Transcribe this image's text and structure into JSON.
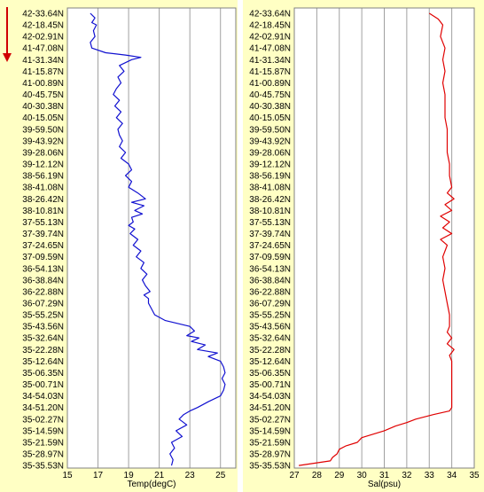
{
  "direction_arrow": {
    "color": "#d00000"
  },
  "chart_data": [
    {
      "type": "line",
      "xlabel": "Temp(degC)",
      "ylabel": "",
      "xlim": [
        15,
        26
      ],
      "x_ticks": [
        15,
        17,
        19,
        21,
        23,
        25
      ],
      "grid": true,
      "panel_bg": "#ffffc4",
      "plot_bg": "#ffffff",
      "y_ticks": [
        "42-33.64N",
        "42-18.45N",
        "42-02.91N",
        "41-47.08N",
        "41-31.34N",
        "41-15.87N",
        "41-00.89N",
        "40-45.75N",
        "40-30.38N",
        "40-15.05N",
        "39-59.50N",
        "39-43.92N",
        "39-28.06N",
        "39-12.12N",
        "38-56.19N",
        "38-41.08N",
        "38-26.42N",
        "38-10.81N",
        "37-55.13N",
        "37-39.74N",
        "37-24.65N",
        "37-09.59N",
        "36-54.13N",
        "36-38.84N",
        "36-22.88N",
        "36-07.29N",
        "35-55.25N",
        "35-43.56N",
        "35-32.64N",
        "35-22.28N",
        "35-12.64N",
        "35-06.35N",
        "35-00.71N",
        "34-54.03N",
        "34-51.20N",
        "35-02.27N",
        "35-14.59N",
        "35-21.59N",
        "35-28.97N",
        "35-35.53N"
      ],
      "series": [
        {
          "color": "#1010d0",
          "depth_index": [
            0,
            0.4,
            0.8,
            1,
            1.5,
            2,
            2.5,
            3,
            3.4,
            3.6,
            3.8,
            4,
            4.5,
            5,
            5.5,
            6,
            6.5,
            7,
            7.5,
            8,
            8.5,
            9,
            9.5,
            10,
            10.5,
            11,
            11.5,
            12,
            12.5,
            13,
            13.5,
            14,
            14.5,
            15,
            15.5,
            16,
            16.3,
            16.6,
            17,
            17.3,
            17.6,
            18,
            18.3,
            18.6,
            19,
            19.5,
            20,
            20.5,
            21,
            21.5,
            22,
            22.5,
            23,
            23.5,
            24,
            24.3,
            24.6,
            25,
            25.5,
            26,
            26.5,
            27,
            27.4,
            27.8,
            28,
            28.3,
            28.6,
            29,
            29.3,
            29.6,
            30,
            30.5,
            31,
            31.5,
            32,
            32.5,
            33,
            33.5,
            34,
            34.3,
            34.6,
            35,
            35.5,
            36,
            36.5,
            37,
            37.5,
            38,
            38.5,
            39
          ],
          "values": [
            16.5,
            16.8,
            16.6,
            16.9,
            16.7,
            16.8,
            16.5,
            16.6,
            17.5,
            18.8,
            19.8,
            19.2,
            18.4,
            18.7,
            18.3,
            18.5,
            18.2,
            18.0,
            18.4,
            18.1,
            18.5,
            18.2,
            18.6,
            18.3,
            18.4,
            18.6,
            18.4,
            18.8,
            18.5,
            19.0,
            19.2,
            18.8,
            19.2,
            19.0,
            19.6,
            20.1,
            19.2,
            20.0,
            19.4,
            19.9,
            19.2,
            19.3,
            19.0,
            19.4,
            19.1,
            19.6,
            19.3,
            19.8,
            19.5,
            20.0,
            19.8,
            20.2,
            19.9,
            20.1,
            20.4,
            20.0,
            20.3,
            20.3,
            20.5,
            20.7,
            21.4,
            23.0,
            23.3,
            22.8,
            23.6,
            23.1,
            24.0,
            23.5,
            24.8,
            24.2,
            25.0,
            25.2,
            25.3,
            25.1,
            25.3,
            25.2,
            25.0,
            24.2,
            23.5,
            23.0,
            22.6,
            22.3,
            22.8,
            22.1,
            22.5,
            21.8,
            22.0,
            21.7,
            21.9,
            21.8
          ]
        }
      ]
    },
    {
      "type": "line",
      "xlabel": "Sal(psu)",
      "ylabel": "",
      "xlim": [
        27,
        35
      ],
      "x_ticks": [
        27,
        28,
        29,
        30,
        31,
        32,
        33,
        34,
        35
      ],
      "grid": true,
      "panel_bg": "#ffffc4",
      "plot_bg": "#ffffff",
      "y_ticks": [
        "42-33.64N",
        "42-18.45N",
        "42-02.91N",
        "41-47.08N",
        "41-31.34N",
        "41-15.87N",
        "41-00.89N",
        "40-45.75N",
        "40-30.38N",
        "40-15.05N",
        "39-59.50N",
        "39-43.92N",
        "39-28.06N",
        "39-12.12N",
        "38-56.19N",
        "38-41.08N",
        "38-26.42N",
        "38-10.81N",
        "37-55.13N",
        "37-39.74N",
        "37-24.65N",
        "37-09.59N",
        "36-54.13N",
        "36-38.84N",
        "36-22.88N",
        "36-07.29N",
        "35-55.25N",
        "35-43.56N",
        "35-32.64N",
        "35-22.28N",
        "35-12.64N",
        "35-06.35N",
        "35-00.71N",
        "34-54.03N",
        "34-51.20N",
        "35-02.27N",
        "35-14.59N",
        "35-21.59N",
        "35-28.97N",
        "35-35.53N"
      ],
      "series": [
        {
          "color": "#e00000",
          "depth_index": [
            0,
            0.5,
            1,
            2,
            3,
            4,
            5,
            6,
            7,
            8,
            9,
            10,
            11,
            12,
            13,
            14,
            15,
            15.5,
            16,
            16.5,
            17,
            17.5,
            18,
            18.5,
            19,
            19.5,
            20,
            21,
            22,
            23,
            24,
            25,
            26,
            27,
            27.5,
            28,
            28.5,
            29,
            29.5,
            30,
            31,
            32,
            33,
            34,
            34.3,
            34.6,
            35,
            35.3,
            35.6,
            36,
            36.3,
            36.6,
            37,
            37.3,
            37.6,
            38,
            38.3,
            38.6,
            39
          ],
          "values": [
            33.0,
            33.4,
            33.6,
            33.5,
            33.7,
            33.6,
            33.7,
            33.6,
            33.7,
            33.7,
            33.7,
            33.8,
            33.8,
            33.8,
            33.9,
            33.9,
            34.0,
            33.8,
            34.1,
            33.7,
            34.0,
            33.5,
            33.9,
            33.6,
            34.0,
            33.5,
            33.8,
            33.6,
            33.7,
            33.6,
            33.7,
            33.8,
            33.9,
            33.9,
            33.8,
            34.0,
            33.8,
            34.1,
            33.9,
            34.0,
            34.0,
            34.0,
            34.0,
            34.0,
            33.9,
            33.2,
            32.4,
            32.0,
            31.5,
            31.0,
            30.5,
            30.0,
            29.8,
            29.3,
            29.0,
            28.9,
            28.7,
            28.6,
            27.2
          ]
        }
      ]
    }
  ]
}
